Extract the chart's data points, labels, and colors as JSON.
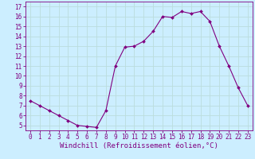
{
  "x": [
    0,
    1,
    2,
    3,
    4,
    5,
    6,
    7,
    8,
    9,
    10,
    11,
    12,
    13,
    14,
    15,
    16,
    17,
    18,
    19,
    20,
    21,
    22,
    23
  ],
  "y": [
    7.5,
    7.0,
    6.5,
    6.0,
    5.5,
    5.0,
    4.9,
    4.8,
    6.5,
    11.0,
    12.9,
    13.0,
    13.5,
    14.5,
    16.0,
    15.9,
    16.5,
    16.3,
    16.5,
    15.5,
    13.0,
    11.0,
    8.8,
    7.0
  ],
  "xlabel": "Windchill (Refroidissement éolien,°C)",
  "line_color": "#800080",
  "marker_color": "#800080",
  "bg_color": "#cceeff",
  "grid_color": "#bbdddd",
  "xlim": [
    -0.5,
    23.5
  ],
  "ylim": [
    4.5,
    17.5
  ],
  "yticks": [
    5,
    6,
    7,
    8,
    9,
    10,
    11,
    12,
    13,
    14,
    15,
    16,
    17
  ],
  "xticks": [
    0,
    1,
    2,
    3,
    4,
    5,
    6,
    7,
    8,
    9,
    10,
    11,
    12,
    13,
    14,
    15,
    16,
    17,
    18,
    19,
    20,
    21,
    22,
    23
  ],
  "tick_fontsize": 5.5,
  "xlabel_fontsize": 6.5,
  "spine_color": "#800080",
  "tick_color": "#800080"
}
